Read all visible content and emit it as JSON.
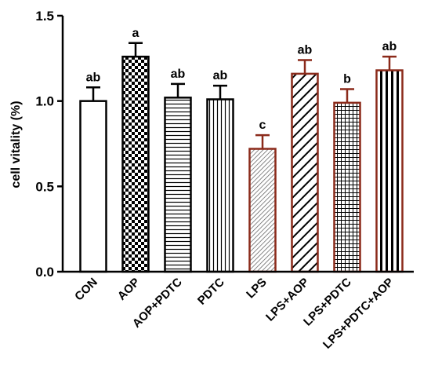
{
  "chart_data": {
    "type": "bar",
    "ylabel": "cell vitality (%)",
    "xlabel": "",
    "ylim": [
      0,
      1.5
    ],
    "yticks": [
      "0.0",
      "0.5",
      "1.0",
      "1.5"
    ],
    "categories": [
      "CON",
      "AOP",
      "AOP+PDTC",
      "PDTC",
      "LPS",
      "LPS+AOP",
      "LPS+PDTC",
      "LPS+PDTC+AOP"
    ],
    "values": [
      1.0,
      1.26,
      1.02,
      1.01,
      0.72,
      1.16,
      0.99,
      1.18
    ],
    "errors": [
      0.08,
      0.08,
      0.08,
      0.08,
      0.08,
      0.08,
      0.08,
      0.08
    ],
    "significance": [
      "ab",
      "a",
      "ab",
      "ab",
      "c",
      "ab",
      "b",
      "ab"
    ],
    "patterns": [
      "solid-white",
      "checker",
      "horizontal-lines",
      "vertical-lines",
      "diagonal-fine",
      "diagonal-bold",
      "grid",
      "vertical-bold"
    ],
    "colors": {
      "control_outline": "#000000",
      "lps_outline": "#8b2a1a",
      "lps_error_bar": "#8b2a1a",
      "fill": "#ffffff"
    },
    "grid": false,
    "legend": "none"
  }
}
